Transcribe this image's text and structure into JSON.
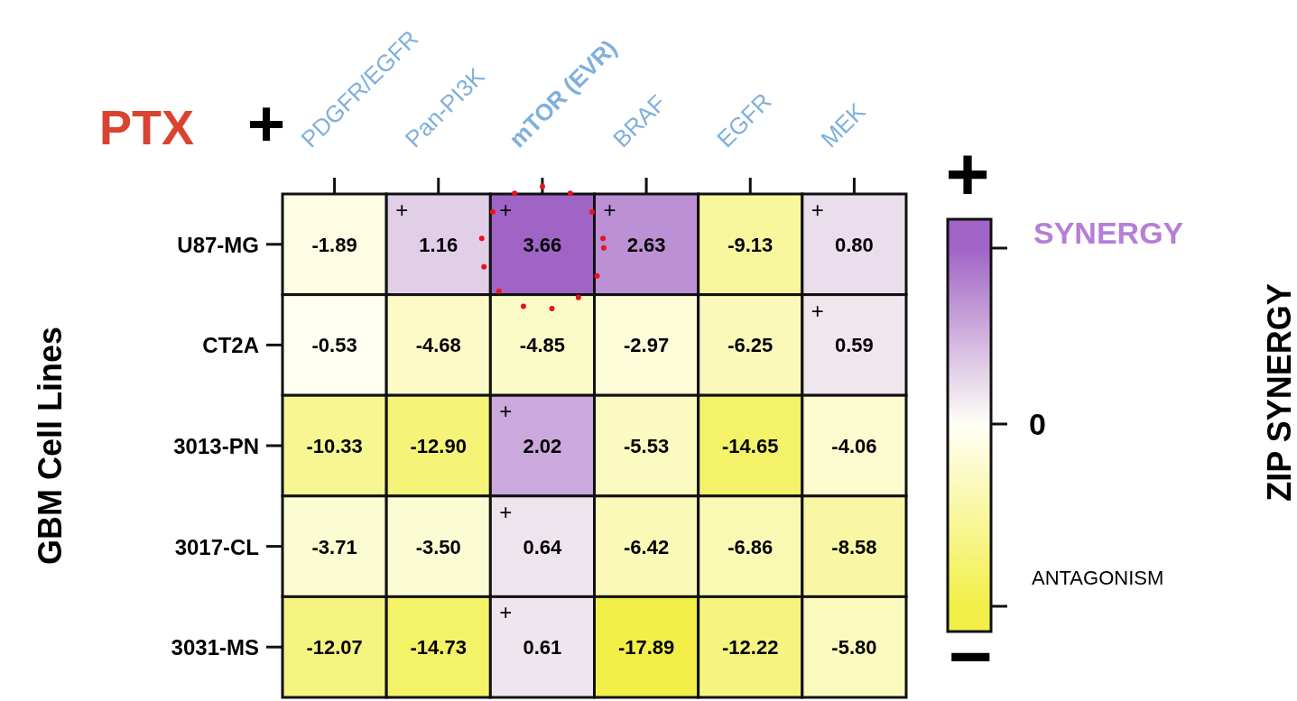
{
  "chart_data": {
    "type": "heatmap",
    "title": "PTX",
    "ylabel": "GBM Cell Lines",
    "clabel": "ZIP SYNERGY",
    "categories": [
      "PDGFR/EGFR",
      "Pan-PI3K",
      "mTOR (EVR)",
      "BRAF",
      "EGFR",
      "MEK"
    ],
    "y_categories": [
      "U87-MG",
      "CT2A",
      "3013-PN",
      "3017-CL",
      "3031-MS"
    ],
    "cells": [
      [
        -1.89,
        1.16,
        3.66,
        2.63,
        -9.13,
        0.8
      ],
      [
        -0.53,
        -4.68,
        -4.85,
        -2.97,
        -6.25,
        0.59
      ],
      [
        -10.33,
        -12.9,
        2.02,
        -5.53,
        -14.65,
        -4.06
      ],
      [
        -3.71,
        -3.5,
        0.64,
        -6.42,
        -6.86,
        -8.58
      ],
      [
        -12.07,
        -14.73,
        0.61,
        -17.89,
        -12.22,
        -5.8
      ]
    ],
    "cell_labels": [
      [
        "-1.89",
        "1.16",
        "3.66",
        "2.63",
        "-9.13",
        "0.80"
      ],
      [
        "-0.53",
        "-4.68",
        "-4.85",
        "-2.97",
        "-6.25",
        "0.59"
      ],
      [
        "-10.33",
        "-12.90",
        "2.02",
        "-5.53",
        "-14.65",
        "-4.06"
      ],
      [
        "-3.71",
        "-3.50",
        "0.64",
        "-6.42",
        "-6.86",
        "-8.58"
      ],
      [
        "-12.07",
        "-14.73",
        "0.61",
        "-17.89",
        "-12.22",
        "-5.80"
      ]
    ],
    "data_labels": true,
    "annotations": [
      "+",
      "+",
      "−",
      "SYNERGY",
      "ANTAGONISM",
      "0",
      "+",
      "+",
      "+",
      "+",
      "+",
      "+",
      "+",
      "+"
    ]
  }
}
